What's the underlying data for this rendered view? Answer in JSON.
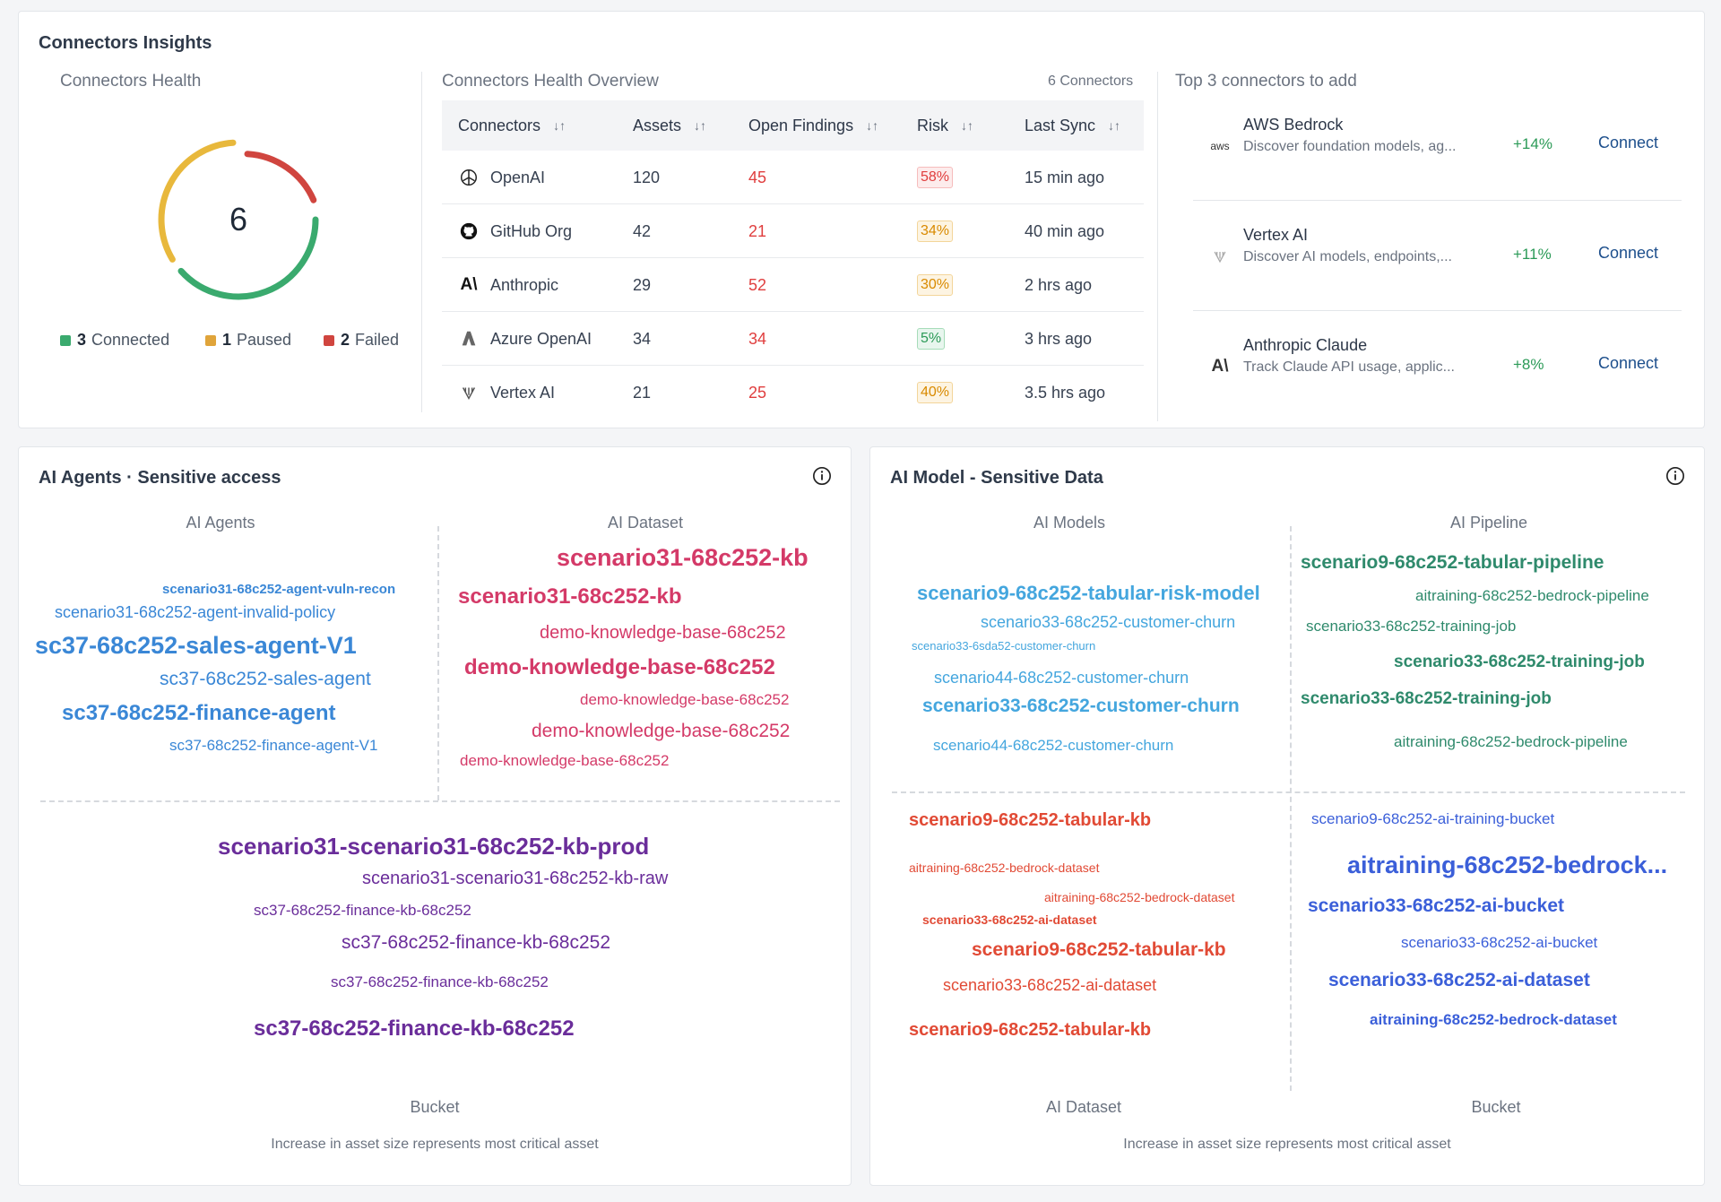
{
  "insights": {
    "title": "Connectors Insights",
    "health": {
      "title": "Connectors Health",
      "total": "6",
      "legend": [
        {
          "count": "3",
          "label": "Connected",
          "color": "#3aaa6e"
        },
        {
          "count": "1",
          "label": "Paused",
          "color": "#e0a43a"
        },
        {
          "count": "2",
          "label": "Failed",
          "color": "#d0453f"
        }
      ]
    },
    "overview": {
      "title": "Connectors Health Overview",
      "count_label": "6 Connectors",
      "headers": [
        "Connectors",
        "Assets",
        "Open Findings",
        "Risk",
        "Last Sync"
      ],
      "rows": [
        {
          "icon": "openai-icon",
          "name": "OpenAI",
          "assets": "120",
          "findings": "45",
          "risk": "58%",
          "level": "high",
          "sync": "15 min ago"
        },
        {
          "icon": "github-icon",
          "name": "GitHub Org",
          "assets": "42",
          "findings": "21",
          "risk": "34%",
          "level": "med",
          "sync": "40 min ago"
        },
        {
          "icon": "anthropic-icon",
          "name": "Anthropic",
          "assets": "29",
          "findings": "52",
          "risk": "30%",
          "level": "med",
          "sync": "2 hrs ago"
        },
        {
          "icon": "azure-openai-icon",
          "name": "Azure OpenAI",
          "assets": "34",
          "findings": "34",
          "risk": "5%",
          "level": "low",
          "sync": "3 hrs ago"
        },
        {
          "icon": "vertex-ai-icon",
          "name": "Vertex AI",
          "assets": "21",
          "findings": "25",
          "risk": "40%",
          "level": "med",
          "sync": "3.5 hrs ago"
        }
      ]
    },
    "top3": {
      "title": "Top 3 connectors to add",
      "items": [
        {
          "icon": "aws-icon",
          "name": "AWS Bedrock",
          "desc": "Discover foundation models, ag...",
          "pct": "+14%",
          "action": "Connect"
        },
        {
          "icon": "vertex-ai-icon",
          "name": "Vertex AI",
          "desc": "Discover AI models, endpoints,...",
          "pct": "+11%",
          "action": "Connect"
        },
        {
          "icon": "anthropic-icon",
          "name": "Anthropic Claude",
          "desc": "Track Claude API usage, applic...",
          "pct": "+8%",
          "action": "Connect"
        }
      ]
    }
  },
  "agents_card": {
    "title": "AI Agents · Sensitive access",
    "quadrants": [
      "AI Agents",
      "AI Dataset",
      "Bucket"
    ],
    "footnote": "Increase in asset size represents most critical asset",
    "agents": [
      "scenario31-68c252-agent-vuln-recon",
      "scenario31-68c252-agent-invalid-policy",
      "sc37-68c252-sales-agent-V1",
      "sc37-68c252-sales-agent",
      "sc37-68c252-finance-agent",
      "sc37-68c252-finance-agent-V1"
    ],
    "datasets": [
      "scenario31-68c252-kb",
      "scenario31-68c252-kb",
      "demo-knowledge-base-68c252",
      "demo-knowledge-base-68c252",
      "demo-knowledge-base-68c252",
      "demo-knowledge-base-68c252",
      "demo-knowledge-base-68c252"
    ],
    "buckets": [
      "scenario31-scenario31-68c252-kb-prod",
      "scenario31-scenario31-68c252-kb-raw",
      "sc37-68c252-finance-kb-68c252",
      "sc37-68c252-finance-kb-68c252",
      "sc37-68c252-finance-kb-68c252",
      "sc37-68c252-finance-kb-68c252"
    ],
    "colors": {
      "agents": "#3a87d6",
      "datasets": "#d43a68",
      "buckets": "#6a2d9a"
    }
  },
  "models_card": {
    "title": "AI Model - Sensitive Data",
    "quadrants": [
      "AI Models",
      "AI Pipeline",
      "AI Dataset",
      "Bucket"
    ],
    "footnote": "Increase in asset size represents most critical asset",
    "models": [
      "scenario9-68c252-tabular-risk-model",
      "scenario33-68c252-customer-churn",
      "scenario33-6sda52-customer-churn",
      "scenario44-68c252-customer-churn",
      "scenario33-68c252-customer-churn",
      "scenario44-68c252-customer-churn"
    ],
    "pipelines": [
      "scenario9-68c252-tabular-pipeline",
      "aitraining-68c252-bedrock-pipeline",
      "scenario33-68c252-training-job",
      "scenario33-68c252-training-job",
      "scenario33-68c252-training-job",
      "aitraining-68c252-bedrock-pipeline"
    ],
    "datasets": [
      "scenario9-68c252-tabular-kb",
      "aitraining-68c252-bedrock-dataset",
      "aitraining-68c252-bedrock-dataset",
      "scenario33-68c252-ai-dataset",
      "scenario9-68c252-tabular-kb",
      "scenario33-68c252-ai-dataset",
      "scenario9-68c252-tabular-kb"
    ],
    "buckets": [
      "scenario9-68c252-ai-training-bucket",
      "aitraining-68c252-bedrock...",
      "scenario33-68c252-ai-bucket",
      "scenario33-68c252-ai-bucket",
      "scenario33-68c252-ai-dataset",
      "aitraining-68c252-bedrock-dataset"
    ],
    "colors": {
      "models": "#44a6de",
      "pipelines": "#2f8a6c",
      "datasets": "#e14a35",
      "buckets": "#3b5fd9"
    }
  }
}
